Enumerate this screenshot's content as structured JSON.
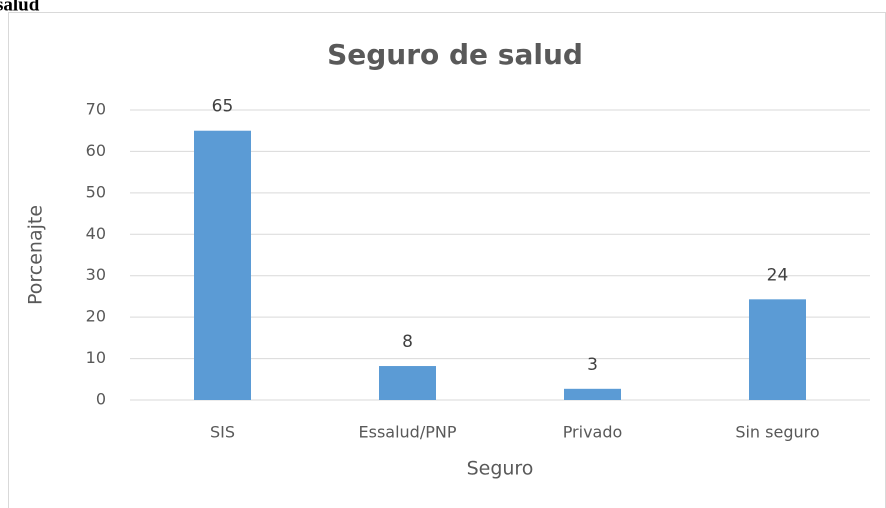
{
  "header_fragment": "salud",
  "chart_data": {
    "type": "bar",
    "title": "Seguro de salud",
    "x_label": "Seguro",
    "y_label": "Porcenajte",
    "categories": [
      "SIS",
      "Essalud/PNP",
      "Privado",
      "Sin seguro"
    ],
    "values": [
      65,
      8.2,
      2.7,
      24.3
    ],
    "value_labels": [
      "65",
      "8",
      "3",
      "24"
    ],
    "color": "#5b9bd5",
    "ylim": [
      0,
      70
    ],
    "yticks": [
      0,
      10,
      20,
      30,
      40,
      50,
      60,
      70
    ],
    "grid": true
  }
}
